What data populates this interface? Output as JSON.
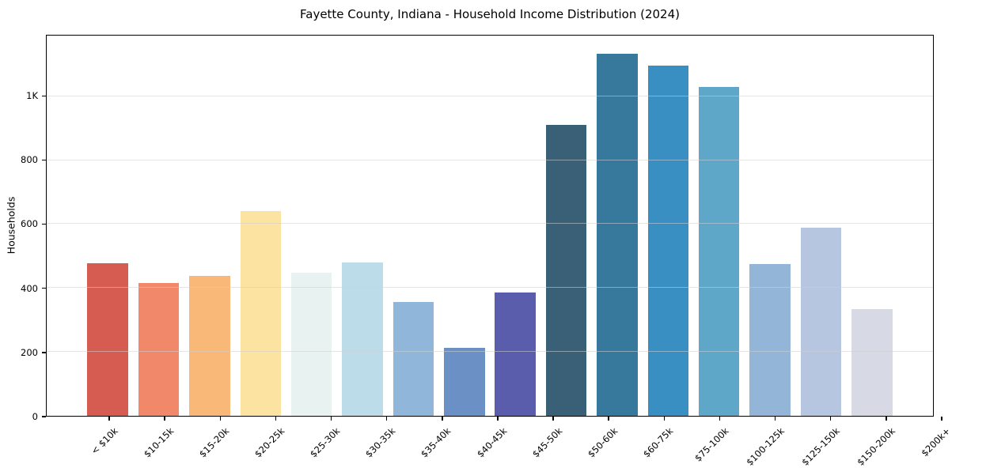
{
  "chart_data": {
    "type": "bar",
    "title": "Fayette County, Indiana - Household Income Distribution (2024)",
    "xlabel": "",
    "ylabel": "Households",
    "categories": [
      "< $10k",
      "$10-15k",
      "$15-20k",
      "$20-25k",
      "$25-30k",
      "$30-35k",
      "$35-40k",
      "$40-45k",
      "$45-50k",
      "$50-60k",
      "$60-75k",
      "$75-100k",
      "$100-125k",
      "$125-150k",
      "$150-200k",
      "$200k+"
    ],
    "values": [
      478,
      416,
      438,
      640,
      447,
      480,
      356,
      212,
      385,
      911,
      1133,
      1095,
      1030,
      474,
      590,
      333
    ],
    "bar_colors": [
      "#d65c52",
      "#f1886a",
      "#fab878",
      "#fde3a2",
      "#e7f2f1",
      "#bcdcea",
      "#90b7da",
      "#6b90c6",
      "#595dab",
      "#3a6077",
      "#37799c",
      "#398fc2",
      "#5fa7c8",
      "#93b5d7",
      "#b7c6e0",
      "#d7d9e5"
    ],
    "ylim": [
      0,
      1190
    ],
    "yticks": [
      {
        "value": 0,
        "label": "0"
      },
      {
        "value": 200,
        "label": "200"
      },
      {
        "value": 400,
        "label": "400"
      },
      {
        "value": 600,
        "label": "600"
      },
      {
        "value": 800,
        "label": "800"
      },
      {
        "value": 1000,
        "label": "1K"
      }
    ],
    "grid": "horizontal",
    "legend": "none"
  },
  "colors": {
    "background": "#ffffff",
    "axis_border": "#000000",
    "gridline": "#d0d0d0",
    "text": "#000000"
  }
}
